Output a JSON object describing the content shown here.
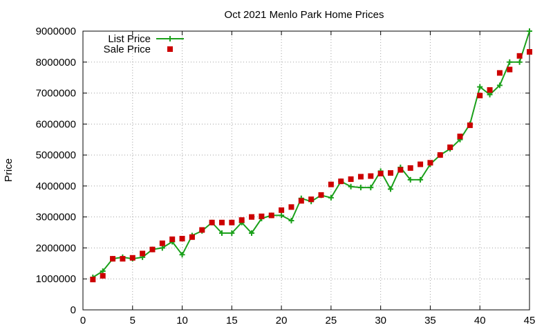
{
  "chart_data": {
    "type": "line",
    "title": "Oct 2021 Menlo Park Home Prices",
    "xlabel": "",
    "ylabel": "Price",
    "xlim": [
      0,
      45
    ],
    "ylim": [
      0,
      9000000
    ],
    "xticks": [
      0,
      5,
      10,
      15,
      20,
      25,
      30,
      35,
      40,
      45
    ],
    "yticks": [
      0,
      1000000,
      2000000,
      3000000,
      4000000,
      5000000,
      6000000,
      7000000,
      8000000,
      9000000
    ],
    "grid": true,
    "legend_position": "top-left",
    "series": [
      {
        "name": "List Price",
        "style": "line-with-plus-markers",
        "color": "#1aa01a",
        "x": [
          1,
          2,
          3,
          4,
          5,
          6,
          7,
          8,
          9,
          10,
          11,
          12,
          13,
          14,
          15,
          16,
          17,
          18,
          19,
          20,
          21,
          22,
          23,
          24,
          25,
          26,
          27,
          28,
          29,
          30,
          31,
          32,
          33,
          34,
          35,
          36,
          37,
          38,
          39,
          40,
          41,
          42,
          43,
          44,
          45
        ],
        "values": [
          1050000,
          1250000,
          1650000,
          1700000,
          1650000,
          1700000,
          1950000,
          2000000,
          2200000,
          1780000,
          2400000,
          2550000,
          2820000,
          2480000,
          2480000,
          2820000,
          2480000,
          2950000,
          3050000,
          3050000,
          2880000,
          3600000,
          3500000,
          3700000,
          3620000,
          4150000,
          3980000,
          3950000,
          3950000,
          4480000,
          3900000,
          4600000,
          4200000,
          4200000,
          4700000,
          5000000,
          5200000,
          5500000,
          6000000,
          7200000,
          6950000,
          7250000,
          8000000,
          8000000,
          9000000
        ]
      },
      {
        "name": "Sale Price",
        "style": "square-markers",
        "color": "#cc0000",
        "x": [
          1,
          2,
          3,
          4,
          5,
          6,
          7,
          8,
          9,
          10,
          11,
          12,
          13,
          14,
          15,
          16,
          17,
          18,
          19,
          20,
          21,
          22,
          23,
          24,
          25,
          26,
          27,
          28,
          29,
          30,
          31,
          32,
          33,
          34,
          35,
          36,
          37,
          38,
          39,
          40,
          41,
          42,
          43,
          44,
          45
        ],
        "values": [
          980000,
          1100000,
          1650000,
          1650000,
          1680000,
          1820000,
          1950000,
          2150000,
          2280000,
          2300000,
          2350000,
          2580000,
          2820000,
          2820000,
          2820000,
          2900000,
          3000000,
          3020000,
          3050000,
          3220000,
          3320000,
          3520000,
          3570000,
          3710000,
          4050000,
          4150000,
          4220000,
          4300000,
          4320000,
          4400000,
          4420000,
          4520000,
          4580000,
          4700000,
          4750000,
          5000000,
          5250000,
          5600000,
          5960000,
          6920000,
          7100000,
          7650000,
          7760000,
          8200000,
          8330000
        ]
      }
    ]
  }
}
